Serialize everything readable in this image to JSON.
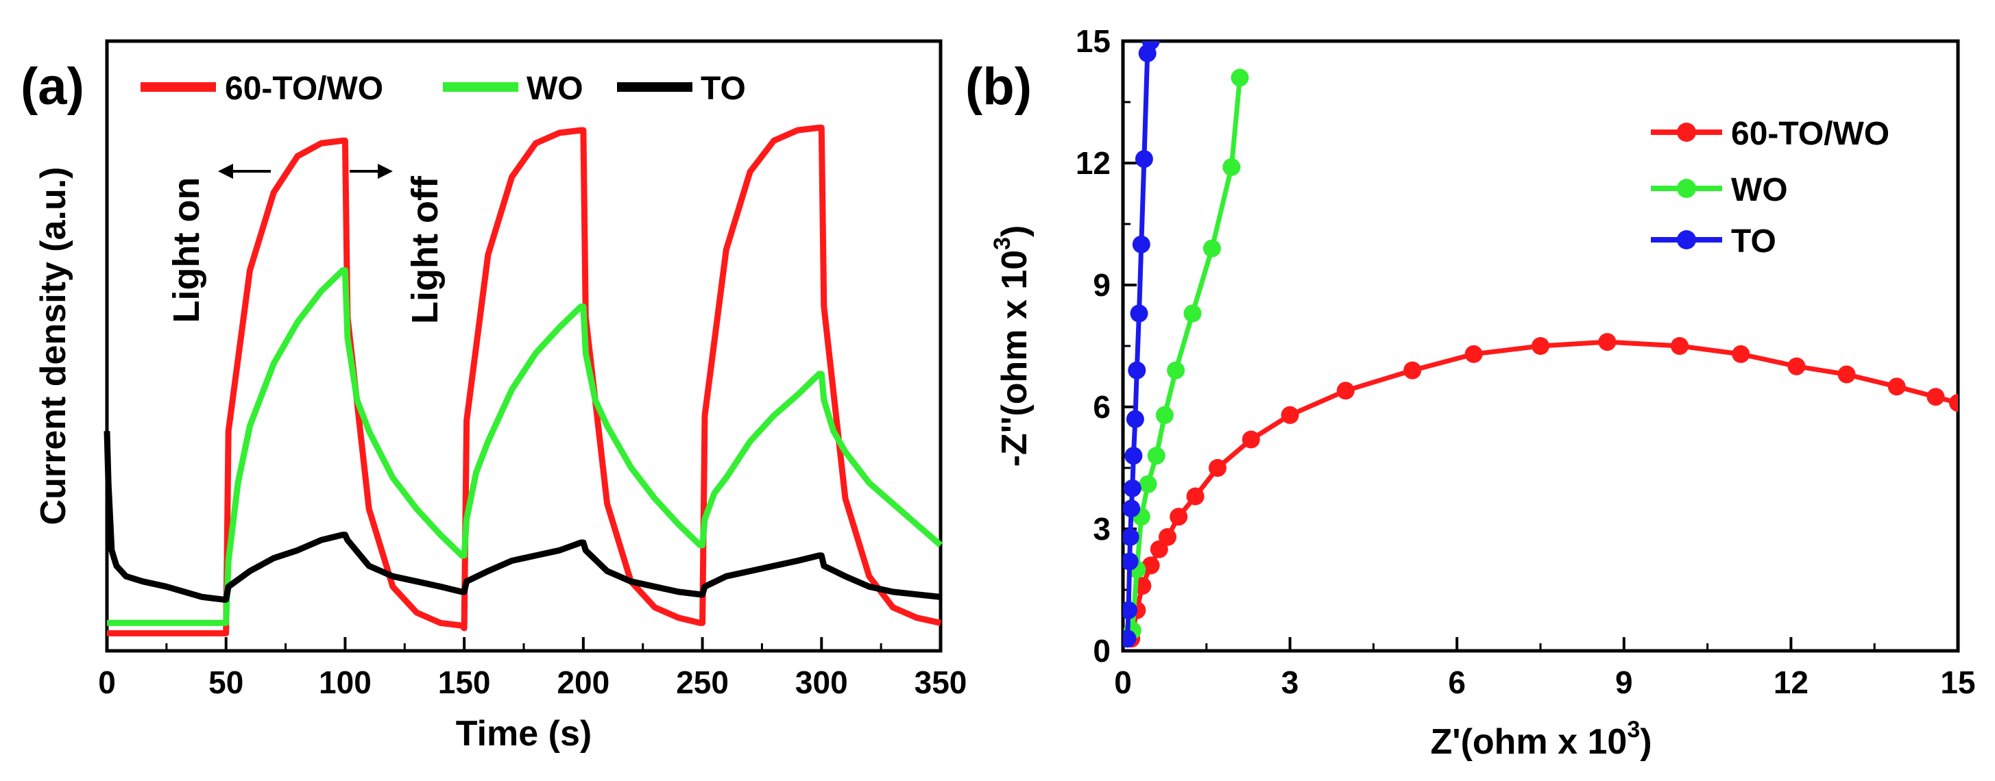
{
  "chart_data": [
    {
      "type": "line",
      "panel_label": "(a)",
      "xlabel": "Time (s)",
      "ylabel": "Current density (a.u.)",
      "xlim": [
        0,
        350
      ],
      "ylim": [
        0,
        1
      ],
      "x_ticks": [
        0,
        50,
        100,
        150,
        200,
        250,
        300,
        350
      ],
      "y_ticks_shown": false,
      "grid": false,
      "legend_position": "top",
      "annotations": [
        {
          "text": "Light on",
          "x": 75,
          "direction": "left"
        },
        {
          "text": "Light off",
          "x": 125,
          "direction": "right"
        }
      ],
      "series": [
        {
          "name": "60-TO/WO",
          "color": "#ff1a1a",
          "x": [
            0,
            3,
            50,
            51,
            60,
            70,
            80,
            90,
            99,
            100,
            101,
            110,
            120,
            130,
            140,
            149,
            150,
            151,
            160,
            170,
            180,
            190,
            199,
            200,
            201,
            210,
            220,
            230,
            240,
            249,
            250,
            251,
            260,
            270,
            280,
            290,
            299,
            300,
            301,
            310,
            320,
            330,
            340,
            350
          ],
          "y": [
            0.01,
            0.01,
            0.01,
            0.4,
            0.71,
            0.86,
            0.93,
            0.955,
            0.96,
            0.96,
            0.62,
            0.25,
            0.1,
            0.05,
            0.03,
            0.025,
            0.02,
            0.42,
            0.74,
            0.89,
            0.955,
            0.975,
            0.98,
            0.98,
            0.62,
            0.26,
            0.11,
            0.06,
            0.04,
            0.03,
            0.03,
            0.43,
            0.75,
            0.9,
            0.96,
            0.98,
            0.985,
            0.985,
            0.64,
            0.27,
            0.12,
            0.06,
            0.04,
            0.03
          ]
        },
        {
          "name": "WO",
          "color": "#33ee33",
          "x": [
            0,
            3,
            50,
            51,
            55,
            60,
            70,
            80,
            90,
            99,
            100,
            101,
            105,
            110,
            120,
            130,
            140,
            149,
            150,
            151,
            155,
            160,
            170,
            180,
            190,
            199,
            200,
            201,
            205,
            210,
            220,
            230,
            240,
            249,
            250,
            251,
            255,
            260,
            270,
            280,
            290,
            299,
            300,
            301,
            305,
            310,
            320,
            330,
            340,
            350
          ],
          "y": [
            0.03,
            0.03,
            0.03,
            0.15,
            0.3,
            0.41,
            0.53,
            0.61,
            0.67,
            0.71,
            0.71,
            0.58,
            0.46,
            0.4,
            0.31,
            0.25,
            0.2,
            0.16,
            0.16,
            0.23,
            0.32,
            0.38,
            0.48,
            0.55,
            0.6,
            0.64,
            0.64,
            0.55,
            0.46,
            0.41,
            0.33,
            0.27,
            0.22,
            0.18,
            0.18,
            0.23,
            0.28,
            0.31,
            0.38,
            0.43,
            0.47,
            0.51,
            0.51,
            0.46,
            0.4,
            0.36,
            0.3,
            0.26,
            0.22,
            0.18
          ]
        },
        {
          "name": "TO",
          "color": "#000000",
          "x": [
            0,
            0.6,
            2,
            4,
            8,
            15,
            25,
            40,
            49,
            50,
            51,
            60,
            70,
            80,
            90,
            99,
            100,
            101,
            110,
            120,
            130,
            140,
            149,
            150,
            151,
            160,
            170,
            180,
            190,
            199,
            200,
            201,
            210,
            220,
            230,
            240,
            249,
            250,
            251,
            260,
            270,
            280,
            290,
            299,
            300,
            301,
            310,
            320,
            330,
            340,
            350
          ],
          "y": [
            0.4,
            0.3,
            0.17,
            0.14,
            0.12,
            0.11,
            0.1,
            0.08,
            0.075,
            0.075,
            0.1,
            0.13,
            0.155,
            0.17,
            0.19,
            0.2,
            0.2,
            0.19,
            0.14,
            0.12,
            0.11,
            0.1,
            0.09,
            0.09,
            0.11,
            0.13,
            0.15,
            0.16,
            0.17,
            0.185,
            0.185,
            0.17,
            0.13,
            0.11,
            0.1,
            0.09,
            0.085,
            0.085,
            0.1,
            0.12,
            0.13,
            0.14,
            0.15,
            0.16,
            0.16,
            0.14,
            0.12,
            0.1,
            0.09,
            0.085,
            0.08
          ]
        }
      ]
    },
    {
      "type": "scatter",
      "panel_label": "(b)",
      "xlabel": "Z'(ohm x 10",
      "xlabel_sup": "3",
      "xlabel_end": ")",
      "ylabel": "-Z''(ohm x 10",
      "ylabel_sup": "3",
      "ylabel_end": ")",
      "xlim": [
        0,
        15
      ],
      "ylim": [
        0,
        15
      ],
      "x_ticks": [
        0,
        3,
        6,
        9,
        12,
        15
      ],
      "y_ticks": [
        0,
        3,
        6,
        9,
        12,
        15
      ],
      "grid": false,
      "legend_position": "top-right",
      "markers": "circle with connecting line",
      "series": [
        {
          "name": "60-TO/WO",
          "color": "#ff1a1a",
          "x": [
            0.15,
            0.25,
            0.35,
            0.5,
            0.65,
            0.8,
            1.0,
            1.3,
            1.7,
            2.3,
            3.0,
            4.0,
            5.2,
            6.3,
            7.5,
            8.7,
            10.0,
            11.1,
            12.1,
            13.0,
            13.9,
            14.6,
            15.0
          ],
          "y": [
            0.3,
            1.0,
            1.6,
            2.1,
            2.5,
            2.8,
            3.3,
            3.8,
            4.5,
            5.2,
            5.8,
            6.4,
            6.9,
            7.3,
            7.5,
            7.6,
            7.5,
            7.3,
            7.0,
            6.8,
            6.5,
            6.25,
            6.1
          ]
        },
        {
          "name": "WO",
          "color": "#33ee33",
          "x": [
            0.17,
            0.25,
            0.33,
            0.45,
            0.6,
            0.75,
            0.95,
            1.25,
            1.6,
            1.95,
            2.1
          ],
          "y": [
            0.5,
            2.0,
            3.3,
            4.1,
            4.8,
            5.8,
            6.9,
            8.3,
            9.9,
            11.9,
            14.1
          ]
        },
        {
          "name": "TO",
          "color": "#1a1aee",
          "x": [
            0.08,
            0.1,
            0.12,
            0.13,
            0.15,
            0.17,
            0.19,
            0.22,
            0.25,
            0.29,
            0.33,
            0.38,
            0.44,
            0.5
          ],
          "y": [
            0.3,
            1.0,
            2.2,
            2.8,
            3.5,
            4.0,
            4.8,
            5.7,
            6.9,
            8.3,
            10.0,
            12.1,
            14.7,
            15.0
          ]
        }
      ]
    }
  ]
}
